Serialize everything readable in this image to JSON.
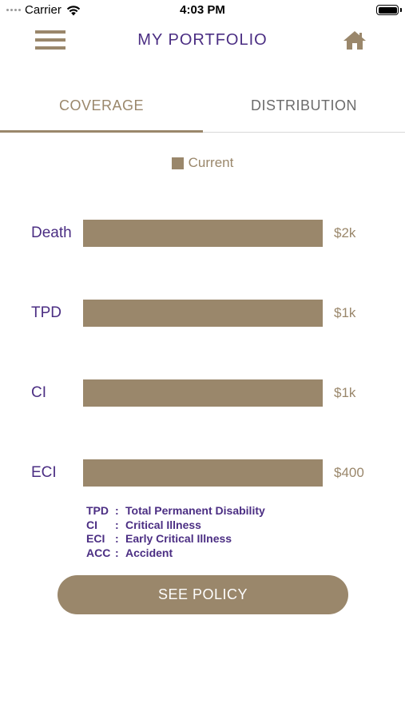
{
  "status_bar": {
    "carrier": "Carrier",
    "time": "4:03 PM"
  },
  "nav": {
    "title": "MY PORTFOLIO",
    "menu_icon": "hamburger-menu-icon",
    "home_icon": "home-icon"
  },
  "tabs": [
    {
      "label": "COVERAGE",
      "active": true
    },
    {
      "label": "DISTRIBUTION",
      "active": false
    }
  ],
  "colors": {
    "accent": "#9a876b",
    "primary_text": "#4b2e83",
    "inactive_tab": "#6b6b6b"
  },
  "chart_data": {
    "type": "bar",
    "orientation": "horizontal",
    "legend": [
      "Current"
    ],
    "categories": [
      "Death",
      "TPD",
      "CI",
      "ECI"
    ],
    "series": [
      {
        "name": "Current",
        "values": [
          2000,
          1000,
          1000,
          400
        ]
      }
    ],
    "value_labels": [
      "$2k",
      "$1k",
      "$1k",
      "$400"
    ]
  },
  "glossary": [
    {
      "abbr": "TPD",
      "term": "Total Permanent Disability"
    },
    {
      "abbr": "CI",
      "term": "Critical Illness"
    },
    {
      "abbr": "ECI",
      "term": "Early Critical Illness"
    },
    {
      "abbr": "ACC",
      "term": "Accident"
    }
  ],
  "button": {
    "label": "SEE POLICY"
  }
}
